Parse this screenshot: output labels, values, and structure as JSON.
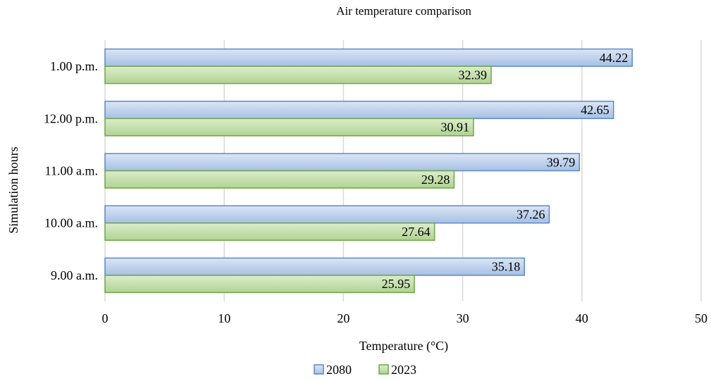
{
  "chart_data": {
    "type": "bar",
    "orientation": "horizontal",
    "title": "Air temperature comparison",
    "xlabel": "Temperature (°C)",
    "ylabel": "Simulation hours",
    "categories": [
      "1.00 p.m.",
      "12.00 p.m.",
      "11.00 a.m.",
      "10.00 a.m.",
      "9.00 a.m."
    ],
    "series": [
      {
        "name": "2080",
        "values": [
          44.22,
          42.65,
          39.79,
          37.26,
          35.18
        ],
        "fill": "#b4cbe9",
        "stroke": "#5b8ac6"
      },
      {
        "name": "2023",
        "values": [
          32.39,
          30.91,
          29.28,
          27.64,
          25.95
        ],
        "fill": "#bfdba4",
        "stroke": "#6fa64a"
      }
    ],
    "xlim": [
      0,
      50
    ],
    "xticks": [
      0,
      10,
      20,
      30,
      40,
      50
    ],
    "grid": true,
    "legend_position": "bottom-center",
    "data_labels": true
  }
}
